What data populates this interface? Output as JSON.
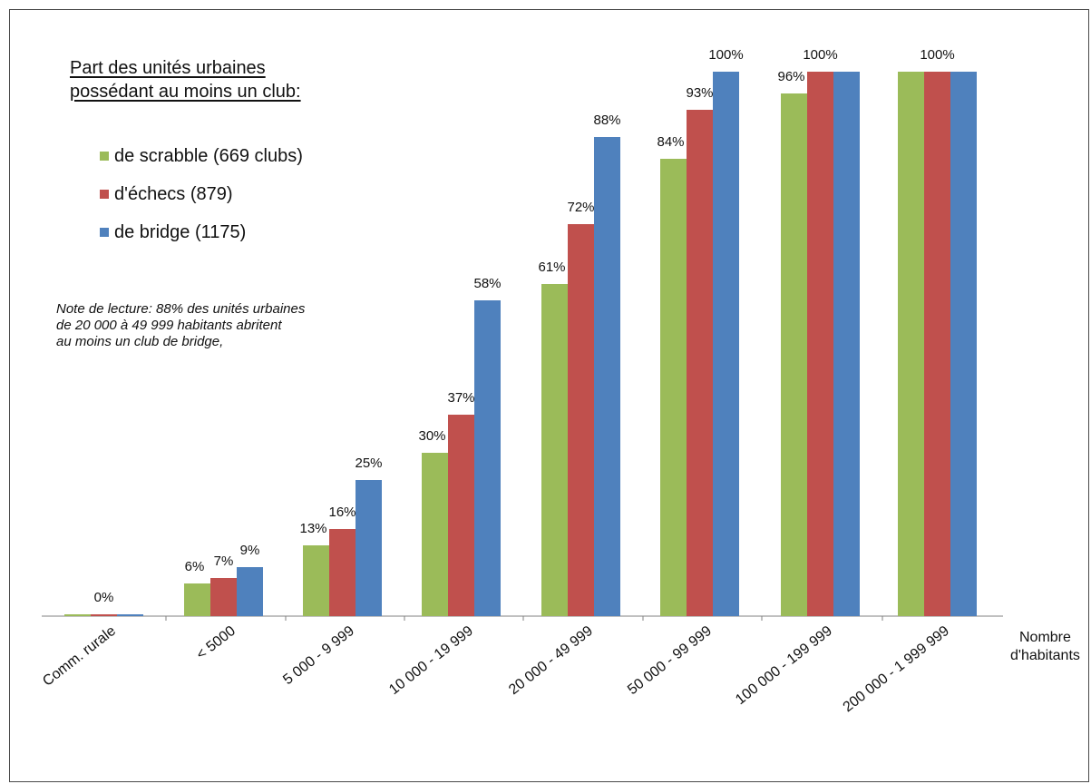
{
  "chart_data": {
    "type": "bar",
    "categories": [
      "Comm. rurale",
      "< 5000",
      "5 000 - 9 999",
      "10 000 - 19 999",
      "20 000 - 49 999",
      "50 000 - 99 999",
      "100 000 - 199 999",
      "200 000 - 1 999 999"
    ],
    "series": [
      {
        "name": "de scrabble (669 clubs)",
        "color": "#9bbb59",
        "values": [
          0,
          6,
          13,
          30,
          61,
          84,
          96,
          100
        ],
        "labels": [
          "",
          "6%",
          "13%",
          "30%",
          "61%",
          "84%",
          "96%",
          ""
        ]
      },
      {
        "name": "d'échecs (879)",
        "color": "#c0504d",
        "values": [
          0,
          7,
          16,
          37,
          72,
          93,
          100,
          100
        ],
        "labels": [
          "0%",
          "7%",
          "16%",
          "37%",
          "72%",
          "93%",
          "100%",
          "100%"
        ]
      },
      {
        "name": "de bridge (1175)",
        "color": "#4f81bd",
        "values": [
          0,
          9,
          25,
          58,
          88,
          100,
          100,
          100
        ],
        "labels": [
          "",
          "9%",
          "25%",
          "58%",
          "88%",
          "100%",
          "",
          ""
        ]
      }
    ],
    "ylim": [
      0,
      100
    ],
    "xlabel": [
      "Nombre",
      "d'habitants"
    ],
    "legend_title": [
      "Part des unités urbaines",
      "possédant au moins un club:"
    ],
    "note": [
      "Note de lecture: 88% des unités urbaines",
      "de 20 000 à 49 999 habitants abritent",
      "au moins un club de bridge,"
    ],
    "grid": false,
    "legend_position": "top-left"
  }
}
